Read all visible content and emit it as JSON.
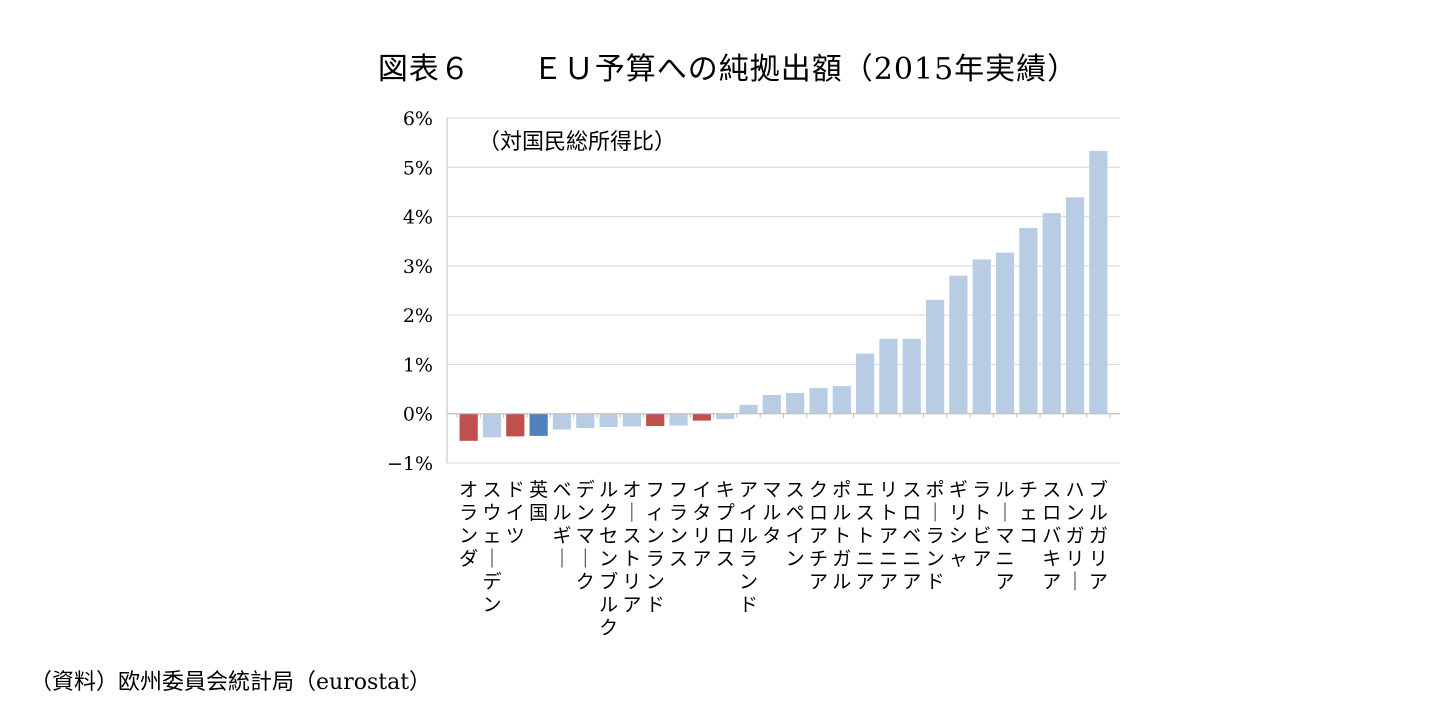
{
  "title": "図表６　　ＥＵ予算への純拠出額（2015年実績）",
  "source": "（資料）欧州委員会統計局（eurostat）",
  "chart_data": {
    "type": "bar",
    "title": "図表６　　ＥＵ予算への純拠出額（2015年実績）",
    "annotation": "（対国民総所得比）",
    "ylabel": "",
    "xlabel": "",
    "ylim": [
      -1,
      6
    ],
    "yticks": [
      "6%",
      "5%",
      "4%",
      "3%",
      "2%",
      "1%",
      "0%",
      "−1%"
    ],
    "ytick_values": [
      6,
      5,
      4,
      3,
      2,
      1,
      0,
      -1
    ],
    "grid": true,
    "colors": {
      "default": "#b8cde4",
      "highlight_red": "#c0504d",
      "highlight_blue": "#4f81bd",
      "grid": "#d9d9d9",
      "axis": "#bfbfbf"
    },
    "categories": [
      "オランダ",
      "スウェーデン",
      "ドイツ",
      "英国",
      "ベルギー",
      "デンマーク",
      "ルクセンブルク",
      "オーストリア",
      "フィンランド",
      "フランス",
      "イタリア",
      "キプロス",
      "アイルランド",
      "マルタ",
      "スペイン",
      "クロアチア",
      "ポルトガル",
      "エストニア",
      "リトアニア",
      "スロベニア",
      "ポーランド",
      "ギリシャ",
      "ラトビア",
      "ルーマニア",
      "チェコ",
      "スロバキア",
      "ハンガリー",
      "ブルガリア"
    ],
    "values": [
      -0.55,
      -0.48,
      -0.46,
      -0.45,
      -0.32,
      -0.29,
      -0.27,
      -0.26,
      -0.25,
      -0.24,
      -0.14,
      -0.11,
      0.18,
      0.38,
      0.42,
      0.52,
      0.56,
      1.22,
      1.52,
      1.52,
      2.31,
      2.8,
      3.13,
      3.27,
      3.77,
      4.07,
      4.39,
      5.33
    ],
    "bar_colors": [
      "highlight_red",
      "default",
      "highlight_red",
      "highlight_blue",
      "default",
      "default",
      "default",
      "default",
      "highlight_red",
      "default",
      "highlight_red",
      "default",
      "default",
      "default",
      "default",
      "default",
      "default",
      "default",
      "default",
      "default",
      "default",
      "default",
      "default",
      "default",
      "default",
      "default",
      "default",
      "default"
    ]
  }
}
